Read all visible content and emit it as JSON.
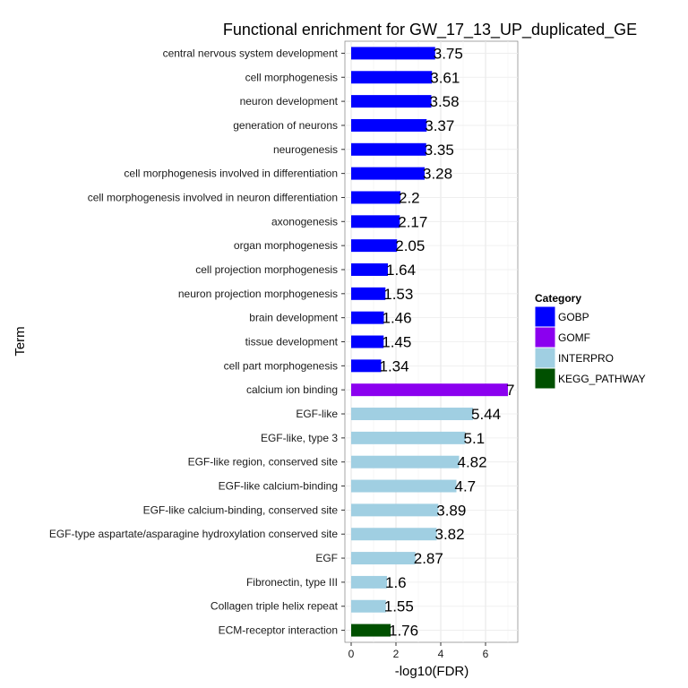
{
  "chart_data": {
    "type": "bar",
    "orientation": "horizontal",
    "title": "Functional enrichment for GW_17_13_UP_duplicated_GE",
    "xlabel": "-log10(FDR)",
    "ylabel": "Term",
    "xlim": [
      0,
      7.3
    ],
    "xticks": [
      0,
      2,
      4,
      6
    ],
    "grid": true,
    "legend": {
      "title": "Category",
      "placement": "right",
      "entries": [
        {
          "name": "GOBP",
          "color": "#0000ff"
        },
        {
          "name": "GOMF",
          "color": "#8b00ef"
        },
        {
          "name": "INTERPRO",
          "color": "#a0cfe2"
        },
        {
          "name": "KEGG_PATHWAY",
          "color": "#005000"
        }
      ]
    },
    "bars": [
      {
        "term": "central nervous system development",
        "value": 3.75,
        "label": "3.75",
        "category": "GOBP"
      },
      {
        "term": "cell morphogenesis",
        "value": 3.61,
        "label": "3.61",
        "category": "GOBP"
      },
      {
        "term": "neuron development",
        "value": 3.58,
        "label": "3.58",
        "category": "GOBP"
      },
      {
        "term": "generation of neurons",
        "value": 3.37,
        "label": "3.37",
        "category": "GOBP"
      },
      {
        "term": "neurogenesis",
        "value": 3.35,
        "label": "3.35",
        "category": "GOBP"
      },
      {
        "term": "cell morphogenesis involved in differentiation",
        "value": 3.28,
        "label": "3.28",
        "category": "GOBP"
      },
      {
        "term": "cell morphogenesis involved in neuron differentiation",
        "value": 2.2,
        "label": "2.2",
        "category": "GOBP"
      },
      {
        "term": "axonogenesis",
        "value": 2.17,
        "label": "2.17",
        "category": "GOBP"
      },
      {
        "term": "organ morphogenesis",
        "value": 2.05,
        "label": "2.05",
        "category": "GOBP"
      },
      {
        "term": "cell projection morphogenesis",
        "value": 1.64,
        "label": "1.64",
        "category": "GOBP"
      },
      {
        "term": "neuron projection morphogenesis",
        "value": 1.53,
        "label": "1.53",
        "category": "GOBP"
      },
      {
        "term": "brain development",
        "value": 1.46,
        "label": "1.46",
        "category": "GOBP"
      },
      {
        "term": "tissue development",
        "value": 1.45,
        "label": "1.45",
        "category": "GOBP"
      },
      {
        "term": "cell part morphogenesis",
        "value": 1.34,
        "label": "1.34",
        "category": "GOBP"
      },
      {
        "term": "calcium ion binding",
        "value": 7,
        "label": "7",
        "category": "GOMF"
      },
      {
        "term": "EGF-like",
        "value": 5.44,
        "label": "5.44",
        "category": "INTERPRO"
      },
      {
        "term": "EGF-like, type 3",
        "value": 5.1,
        "label": "5.1",
        "category": "INTERPRO"
      },
      {
        "term": "EGF-like region, conserved site",
        "value": 4.82,
        "label": "4.82",
        "category": "INTERPRO"
      },
      {
        "term": "EGF-like calcium-binding",
        "value": 4.7,
        "label": "4.7",
        "category": "INTERPRO"
      },
      {
        "term": "EGF-like calcium-binding, conserved site",
        "value": 3.89,
        "label": "3.89",
        "category": "INTERPRO"
      },
      {
        "term": "EGF-type aspartate/asparagine hydroxylation conserved site",
        "value": 3.82,
        "label": "3.82",
        "category": "INTERPRO"
      },
      {
        "term": "EGF",
        "value": 2.87,
        "label": "2.87",
        "category": "INTERPRO"
      },
      {
        "term": "Fibronectin, type III",
        "value": 1.6,
        "label": "1.6",
        "category": "INTERPRO"
      },
      {
        "term": "Collagen triple helix repeat",
        "value": 1.55,
        "label": "1.55",
        "category": "INTERPRO"
      },
      {
        "term": "ECM-receptor interaction",
        "value": 1.76,
        "label": "1.76",
        "category": "KEGG_PATHWAY"
      }
    ]
  }
}
